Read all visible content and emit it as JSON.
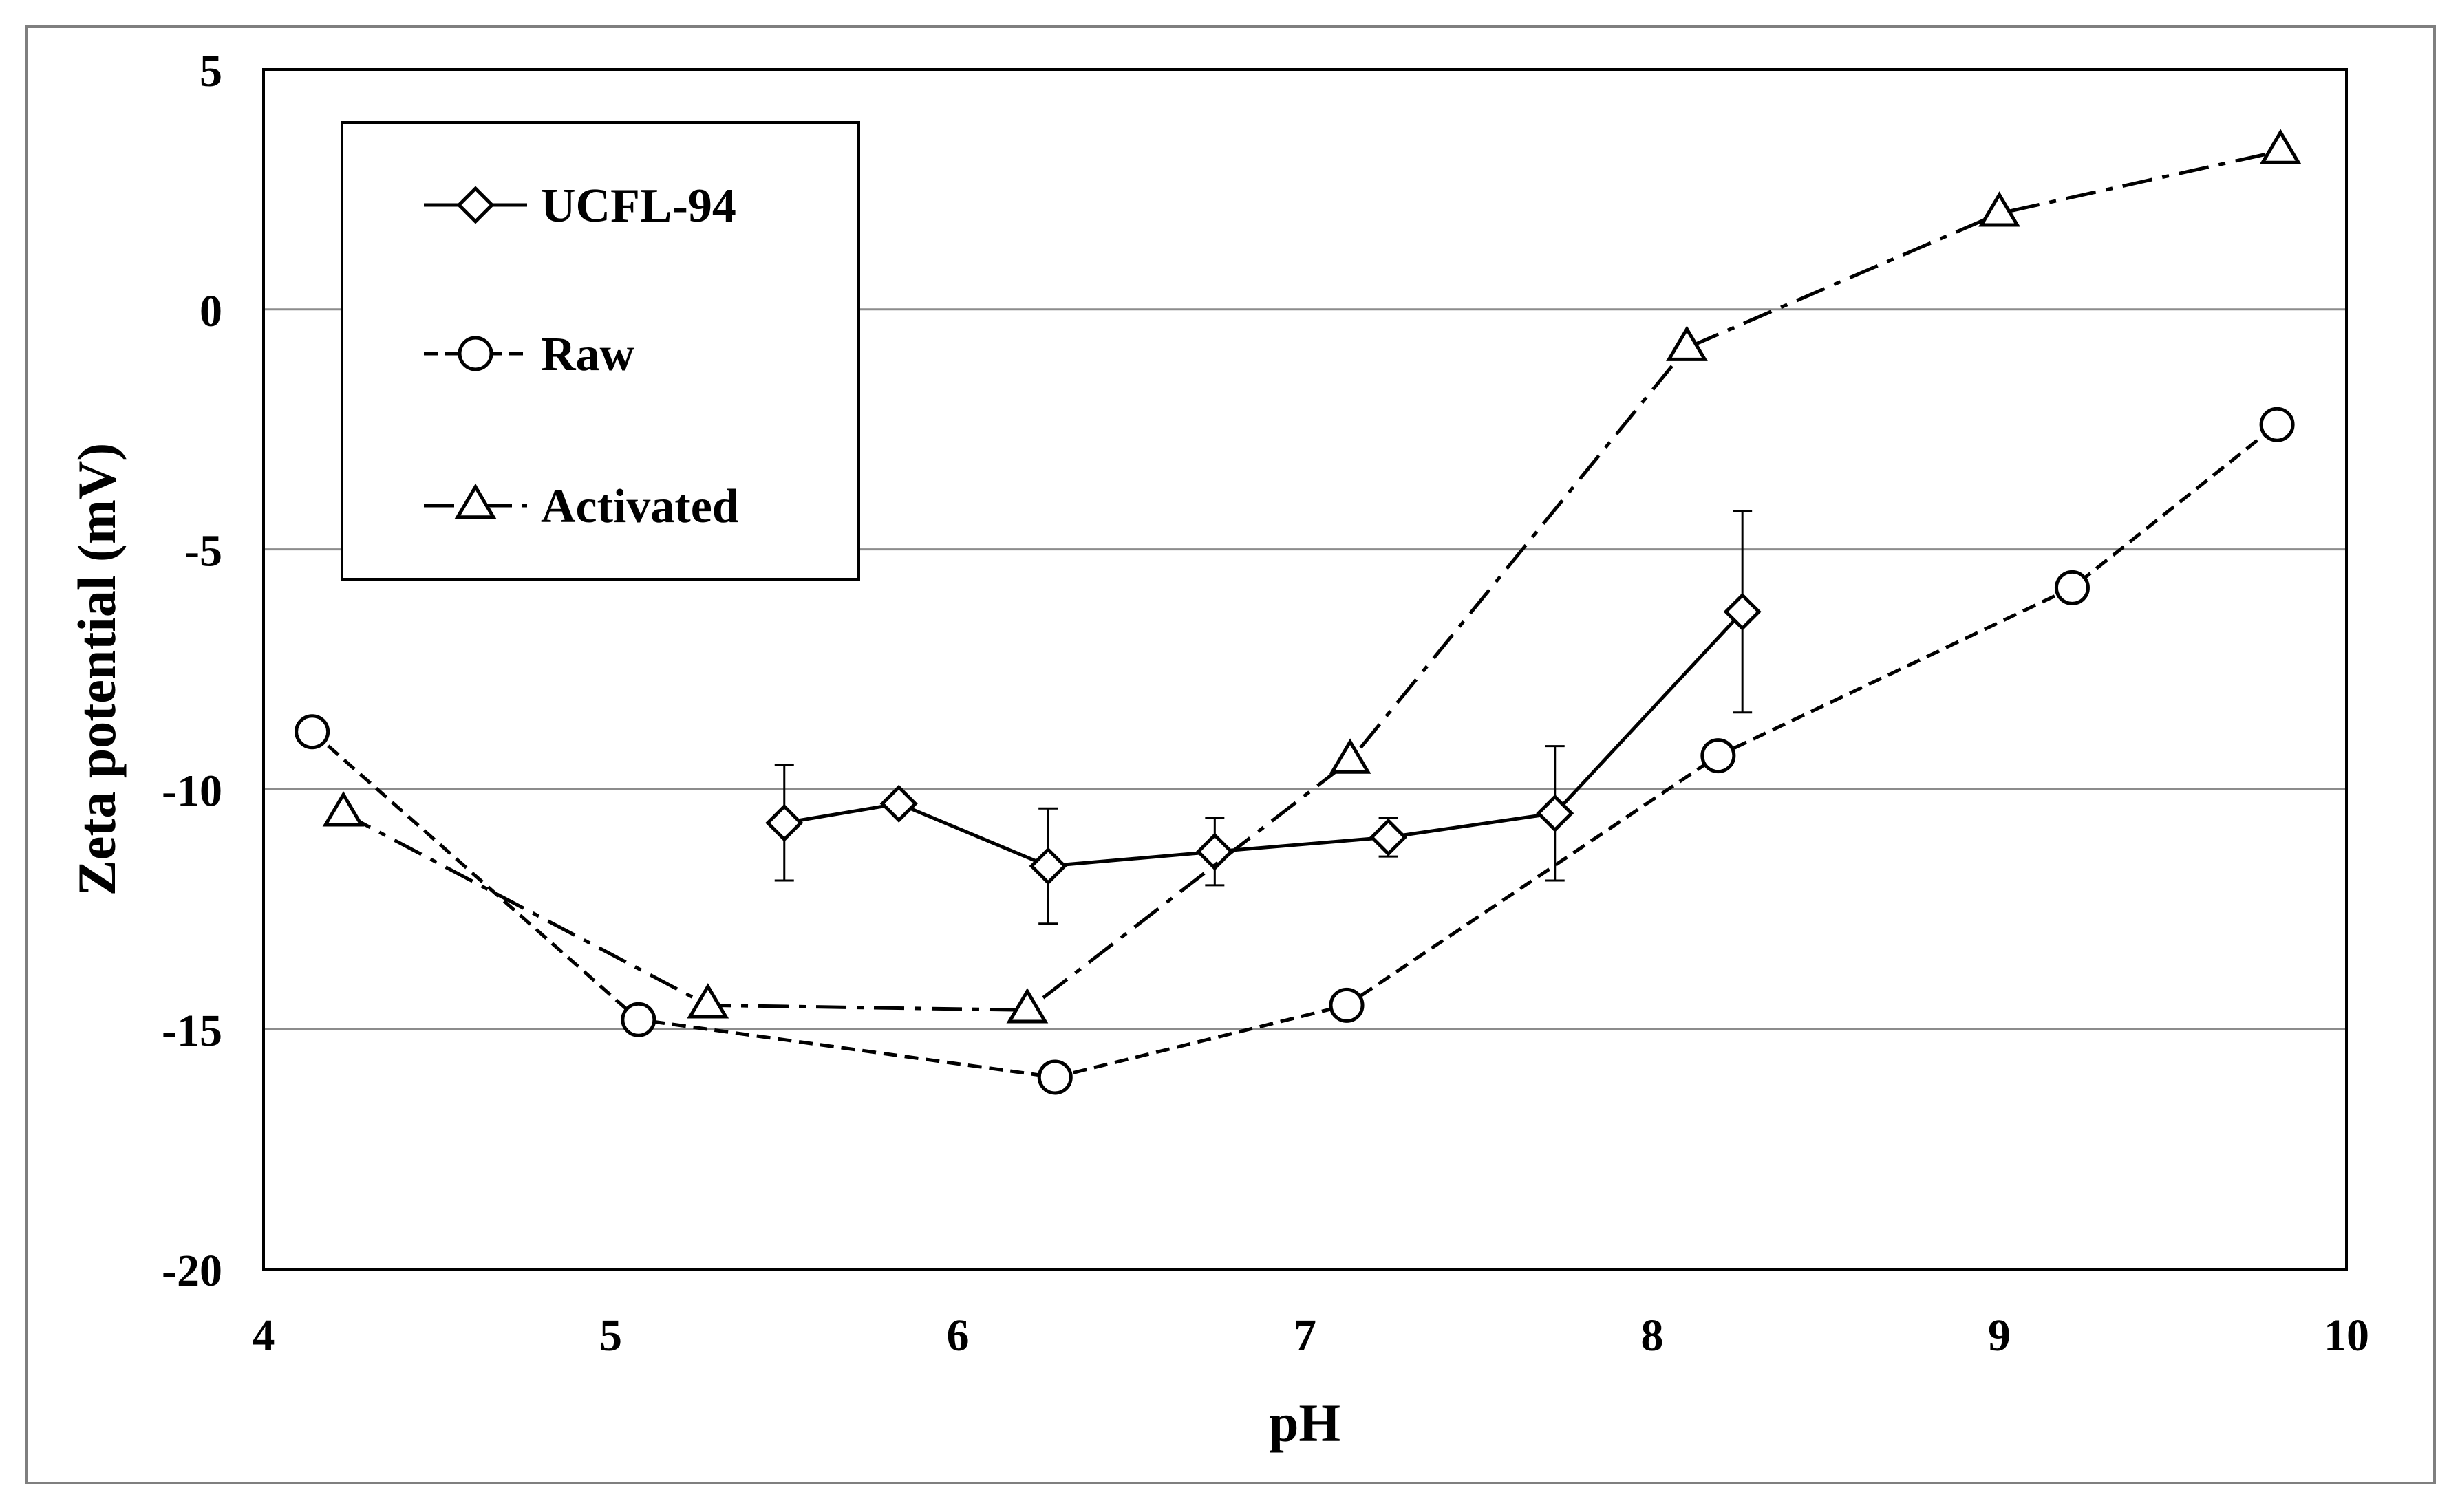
{
  "chart_data": {
    "type": "line",
    "xlabel": "pH",
    "ylabel": "Zeta potential (mV)",
    "xlim": [
      4,
      10
    ],
    "ylim": [
      -20,
      5
    ],
    "x_ticks": [
      4,
      5,
      6,
      7,
      8,
      9,
      10
    ],
    "y_ticks": [
      5,
      0,
      -5,
      -10,
      -15,
      -20
    ],
    "y_gridlines": [
      0,
      -5,
      -10,
      -15
    ],
    "grid": "horizontal",
    "legend_position": "top-left",
    "series": [
      {
        "name": "UCFL-94",
        "line_style": "solid",
        "marker": "diamond",
        "x": [
          5.5,
          5.83,
          6.26,
          6.74,
          7.24,
          7.72,
          8.26
        ],
        "y": [
          -10.7,
          -10.3,
          -11.6,
          -11.3,
          -11.0,
          -10.5,
          -6.3
        ],
        "error": [
          1.2,
          null,
          1.2,
          0.7,
          0.4,
          1.4,
          2.1
        ]
      },
      {
        "name": "Raw",
        "line_style": "dashed",
        "marker": "circle",
        "x": [
          4.14,
          5.08,
          6.28,
          7.12,
          8.19,
          9.21,
          9.8
        ],
        "y": [
          -8.8,
          -14.8,
          -16.0,
          -14.5,
          -9.3,
          -5.8,
          -2.4
        ]
      },
      {
        "name": "Activated",
        "line_style": "dash-dot",
        "marker": "triangle",
        "x": [
          4.23,
          5.28,
          6.2,
          7.13,
          8.1,
          9.0,
          9.81
        ],
        "y": [
          -10.5,
          -14.5,
          -14.6,
          -9.4,
          -0.8,
          2.0,
          3.3
        ]
      }
    ]
  }
}
